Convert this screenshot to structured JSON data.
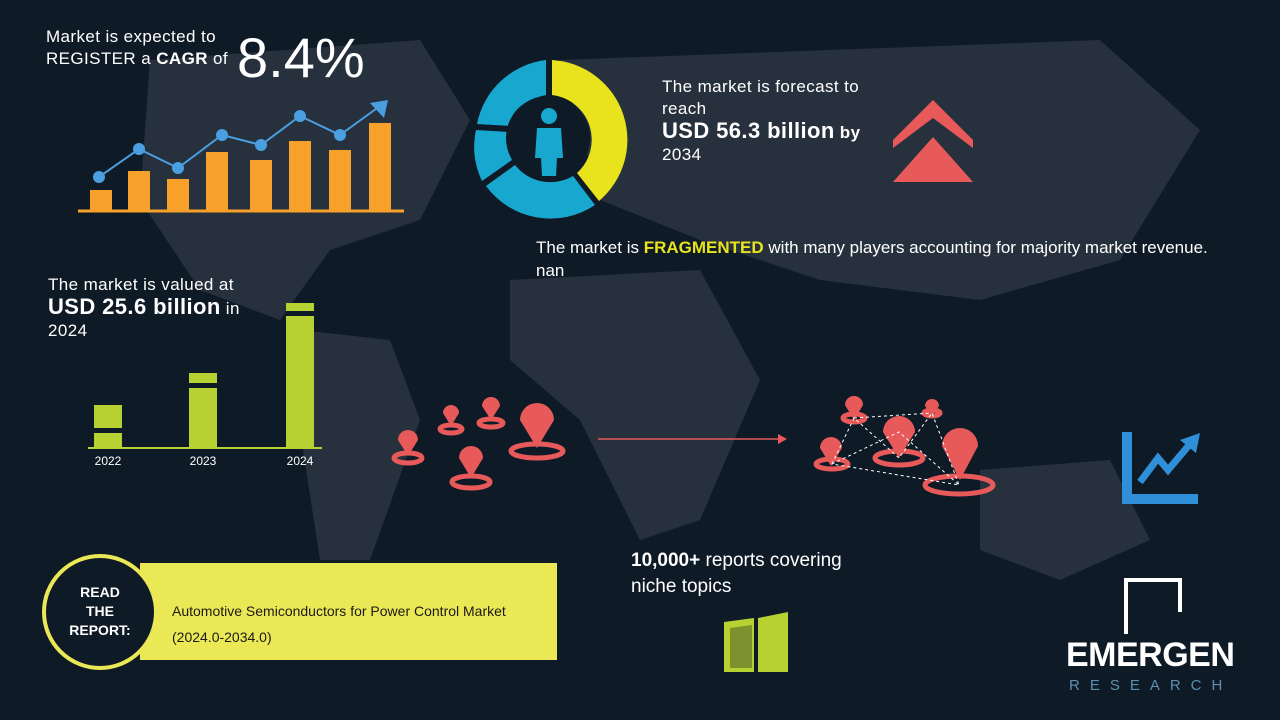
{
  "cagr": {
    "intro": "Market is expected to",
    "register": "REGISTER a",
    "label": "CAGR",
    "of": "of",
    "value": "8.4%"
  },
  "forecast": {
    "intro": "The market is forecast to reach",
    "value": "USD 56.3 billion",
    "by": "by",
    "year": "2034"
  },
  "fragmentation": {
    "intro": "The market is",
    "emphasis": "FRAGMENTED",
    "rest": "with many players accounting for majority market revenue. nan"
  },
  "valuation": {
    "intro": "The market is valued at",
    "value": "USD 25.6 billion",
    "in": "in",
    "year": "2024"
  },
  "years": [
    "2022",
    "2023",
    "2024"
  ],
  "report": {
    "cta": "READ THE REPORT:",
    "title": "Automotive Semiconductors for Power Control Market (2024.0-2034.0)"
  },
  "reports_count": {
    "value": "10,000+",
    "text": "reports covering niche topics"
  },
  "brand": {
    "name": "EMERGEN",
    "tagline": "RESEARCH"
  }
}
